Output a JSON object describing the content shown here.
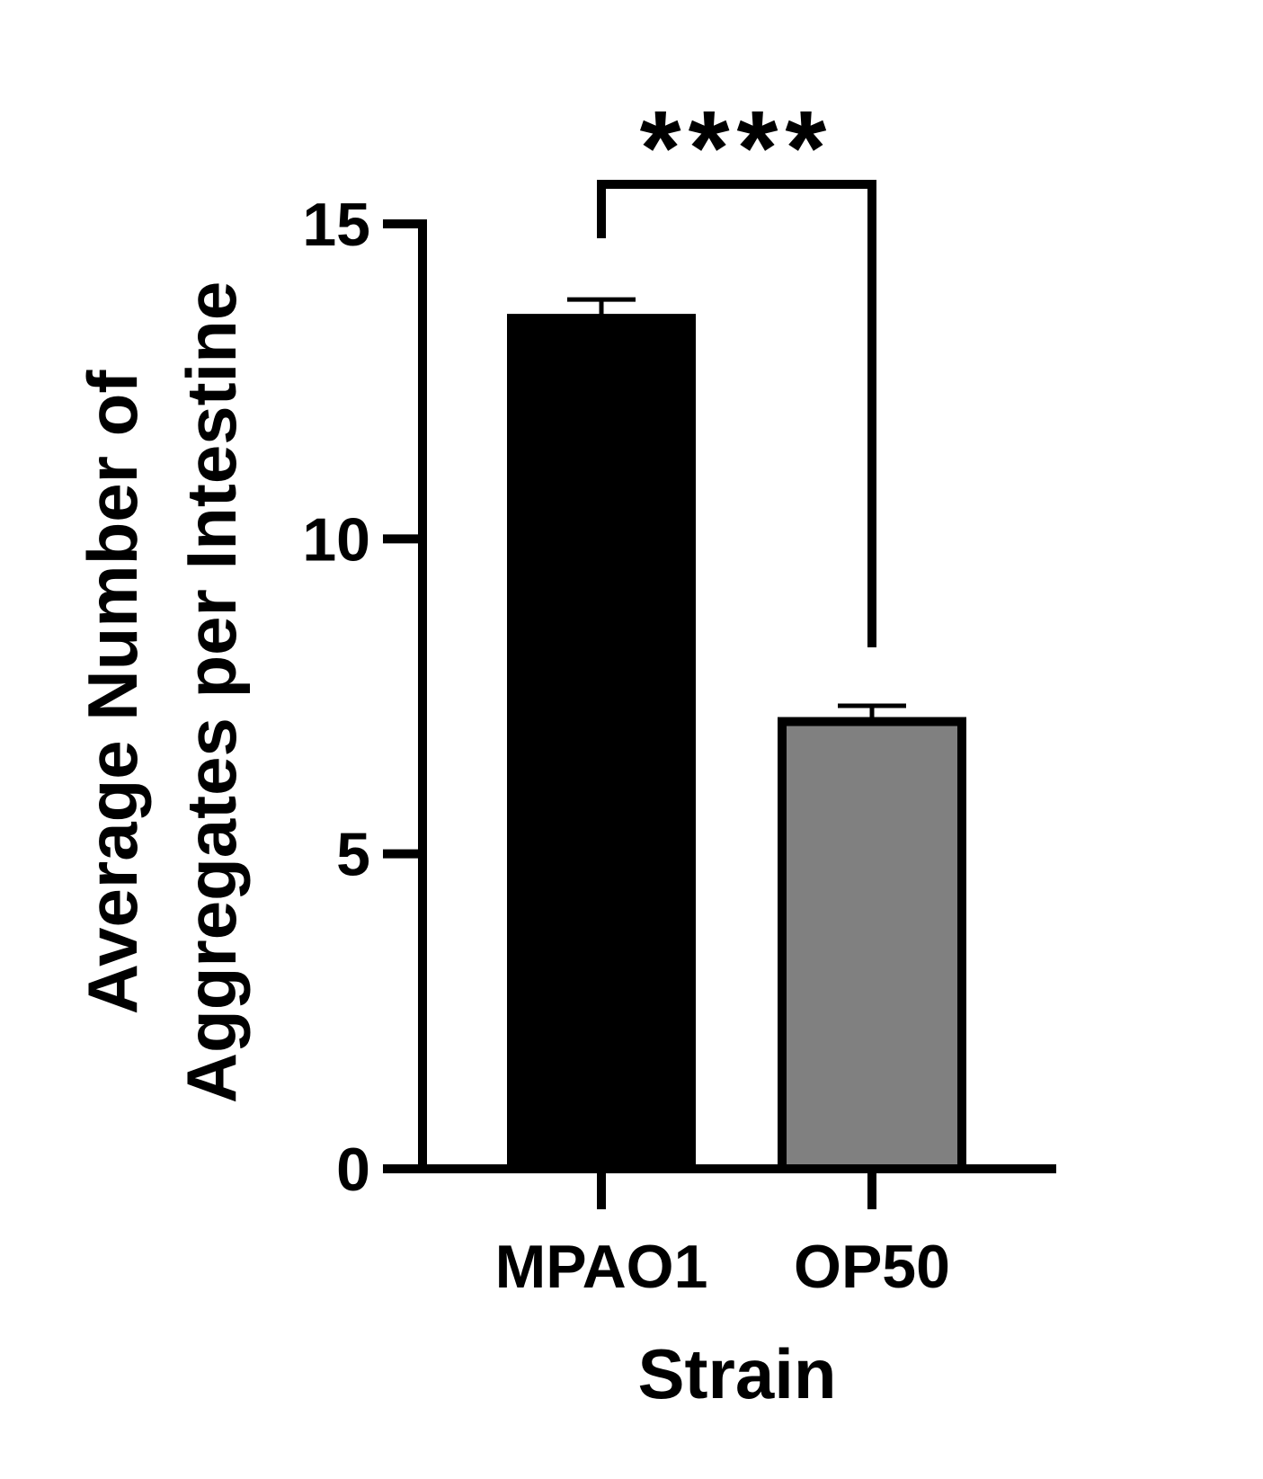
{
  "chart_data": {
    "type": "bar",
    "categories": [
      "MPAO1",
      "OP50"
    ],
    "values": [
      13.5,
      7.1
    ],
    "errors": [
      0.3,
      0.25
    ],
    "colors": [
      "#000000",
      "#808080"
    ],
    "xlabel": "Strain",
    "ylabel_lines": [
      "Average Number of",
      "Aggregates per Intestine"
    ],
    "ylim": [
      0,
      15
    ],
    "yticks": [
      "0",
      "5",
      "10",
      "15"
    ],
    "grid": false,
    "significance": {
      "label": "****",
      "between": [
        "MPAO1",
        "OP50"
      ]
    }
  }
}
